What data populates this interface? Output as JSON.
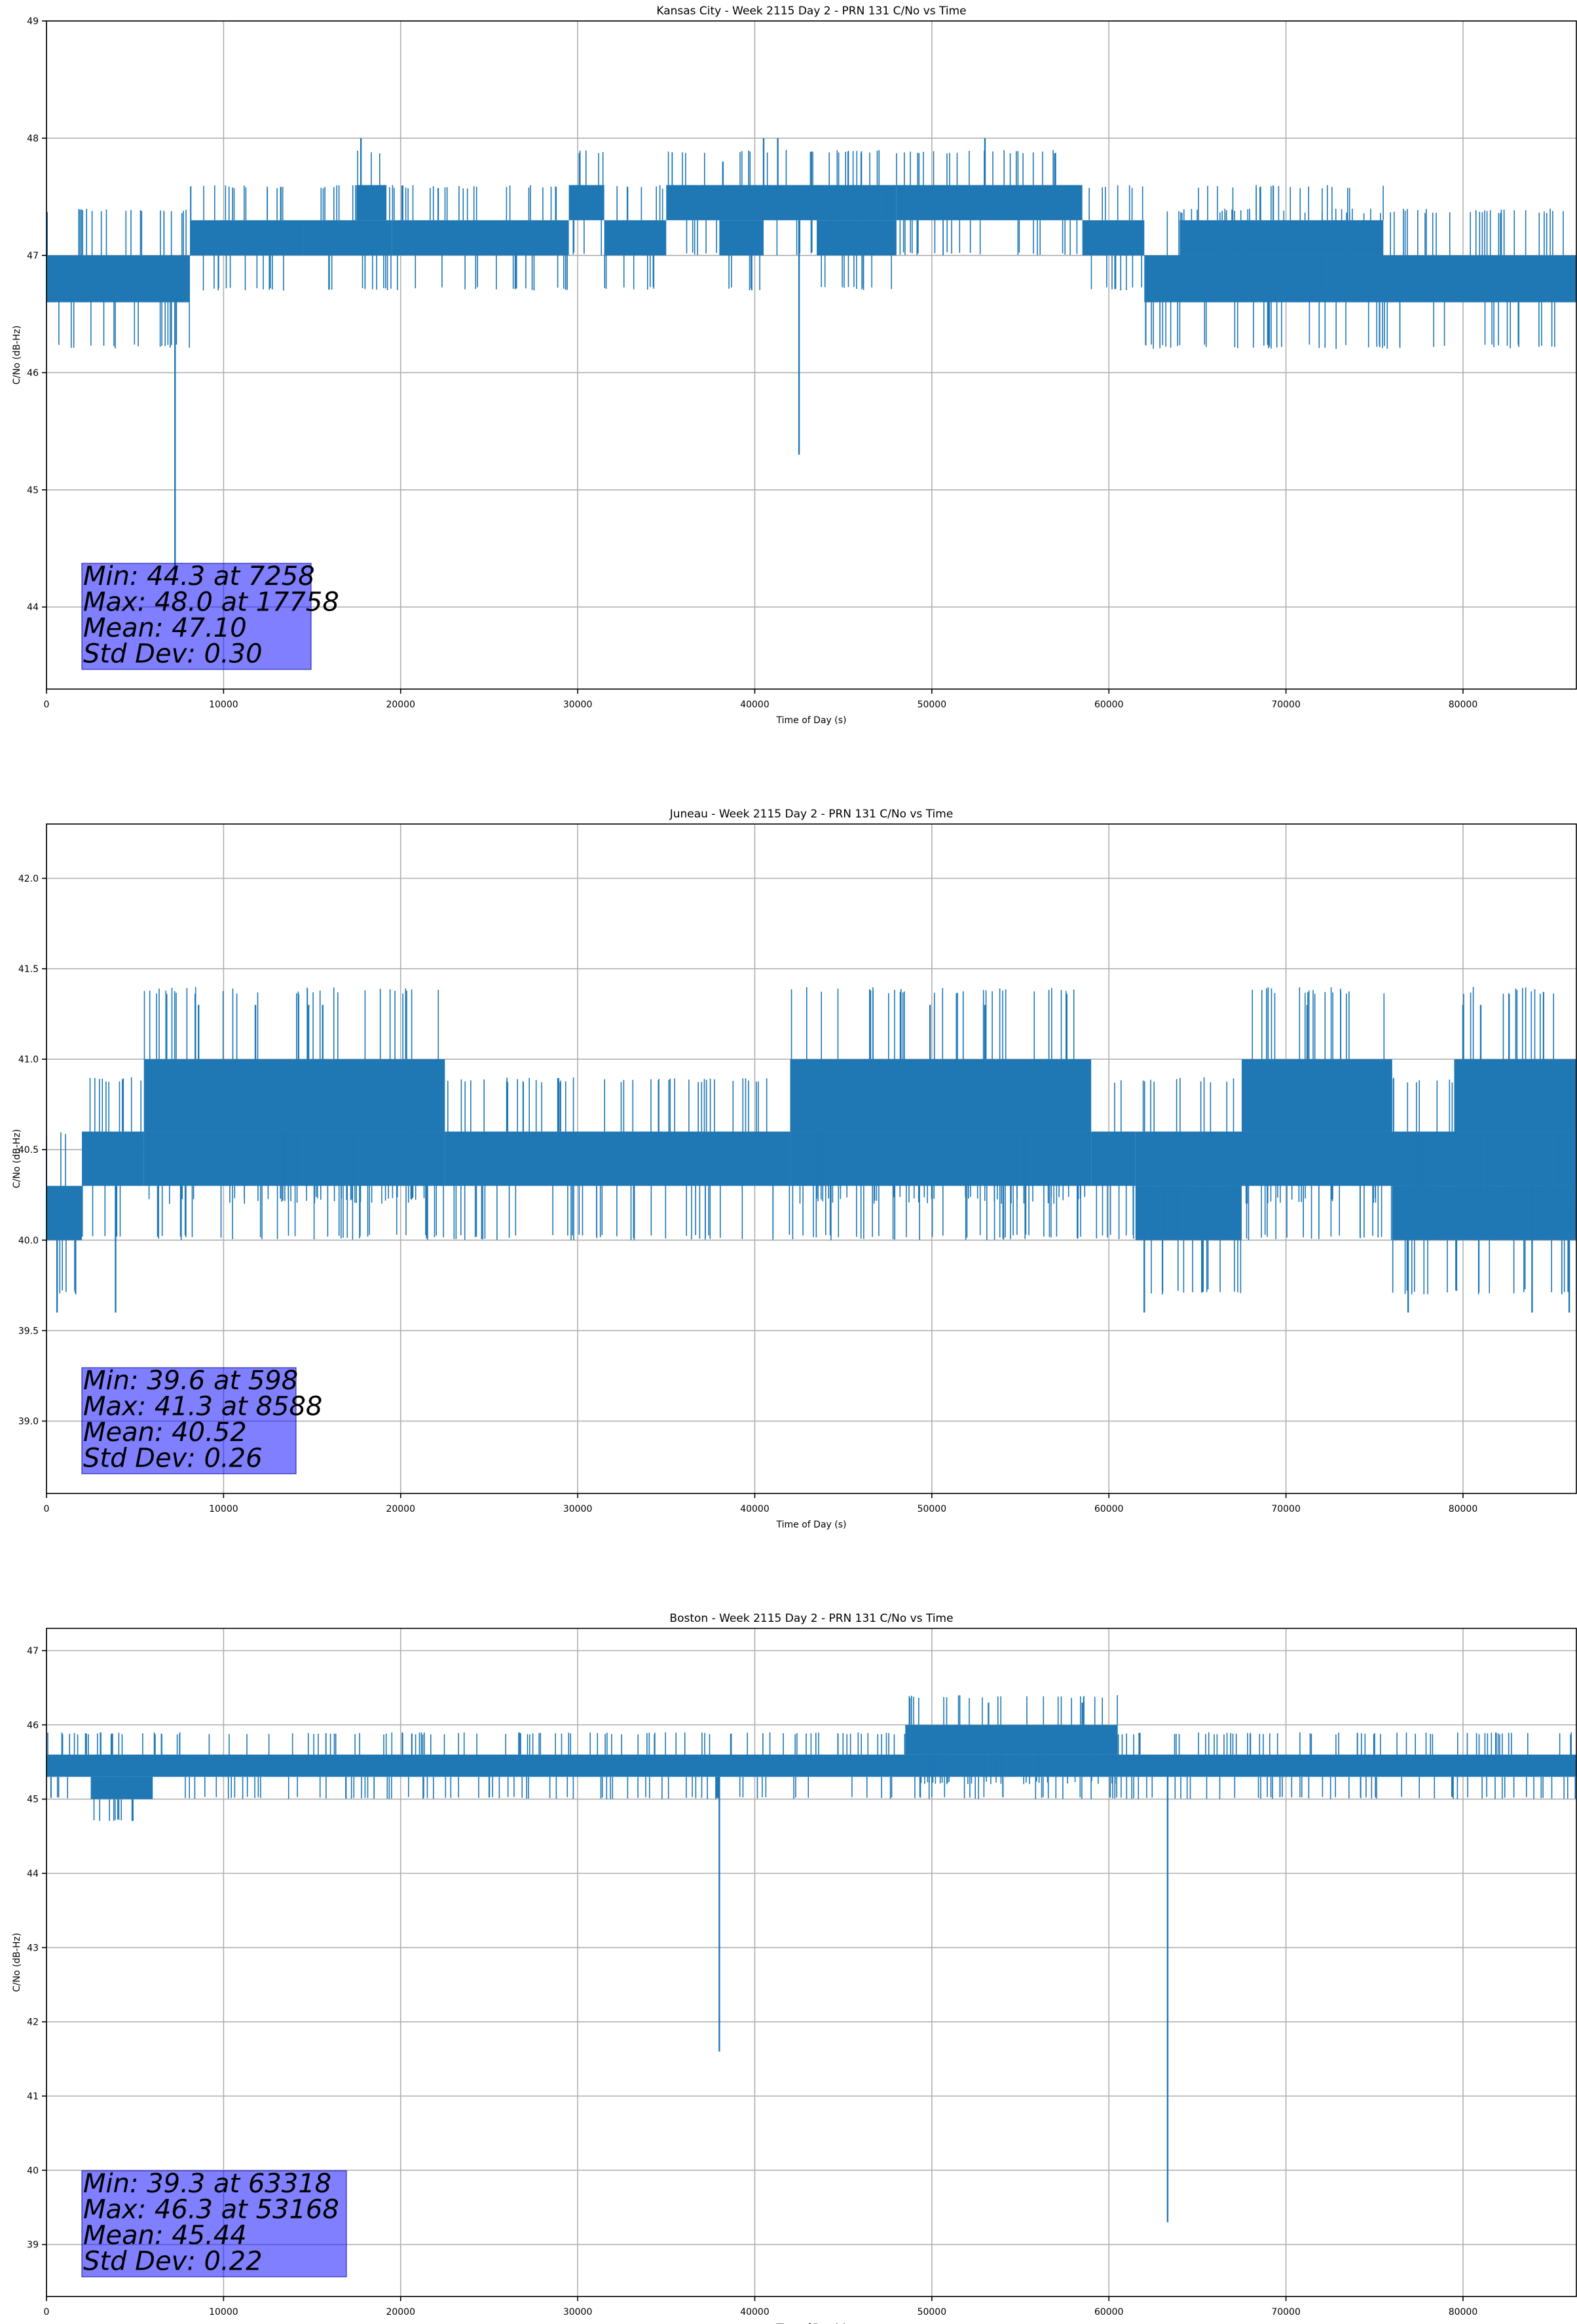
{
  "chart_data": [
    {
      "type": "line",
      "title": "Kansas City - Week 2115 Day 2 - PRN 131 C/No vs Time",
      "xlabel": "Time of Day (s)",
      "ylabel": "C/No (dB-Hz)",
      "xlim": [
        0,
        86400
      ],
      "ylim": [
        43.3,
        49.0
      ],
      "xticks": [
        0,
        10000,
        20000,
        30000,
        40000,
        50000,
        60000,
        70000,
        80000
      ],
      "yticks": [
        44,
        45,
        46,
        47,
        48,
        49
      ],
      "ytick_labels": [
        "44",
        "45",
        "46",
        "47",
        "48",
        "49"
      ],
      "grid": true,
      "line_color": "#1f77b4",
      "bands": [
        {
          "x": [
            0,
            8100
          ],
          "y": [
            46.6,
            47.0
          ]
        },
        {
          "x": [
            8100,
            14500
          ],
          "y": [
            47.0,
            47.3
          ]
        },
        {
          "x": [
            14500,
            19500
          ],
          "y": [
            47.0,
            47.3
          ]
        },
        {
          "x": [
            17500,
            19200
          ],
          "y": [
            47.3,
            47.6
          ]
        },
        {
          "x": [
            19500,
            29500
          ],
          "y": [
            47.0,
            47.3
          ]
        },
        {
          "x": [
            29500,
            31500
          ],
          "y": [
            47.3,
            47.6
          ]
        },
        {
          "x": [
            31500,
            35000
          ],
          "y": [
            47.0,
            47.3
          ]
        },
        {
          "x": [
            35000,
            48000
          ],
          "y": [
            47.3,
            47.6
          ]
        },
        {
          "x": [
            38000,
            40500
          ],
          "y": [
            47.0,
            47.3
          ]
        },
        {
          "x": [
            43500,
            48000
          ],
          "y": [
            47.0,
            47.3
          ]
        },
        {
          "x": [
            48000,
            58500
          ],
          "y": [
            47.3,
            47.6
          ]
        },
        {
          "x": [
            58500,
            62000
          ],
          "y": [
            47.0,
            47.3
          ]
        },
        {
          "x": [
            62000,
            86400
          ],
          "y": [
            46.6,
            47.0
          ]
        },
        {
          "x": [
            64000,
            75500
          ],
          "y": [
            47.0,
            47.3
          ]
        }
      ],
      "spikes": [
        {
          "x": 7258,
          "y": 44.3
        },
        {
          "x": 17758,
          "y": 48.0
        },
        {
          "x": 40500,
          "y": 48.0
        },
        {
          "x": 41300,
          "y": 48.0
        },
        {
          "x": 42500,
          "y": 45.3
        },
        {
          "x": 53000,
          "y": 48.0
        },
        {
          "x": 38200,
          "y": 47.8
        }
      ],
      "stats_box": {
        "min": "Min: 44.3 at 7258",
        "max": "Max: 48.0 at 17758",
        "mean": "Mean: 47.10",
        "std": "Std Dev: 0.30"
      }
    },
    {
      "type": "line",
      "title": "Juneau - Week 2115 Day 2 - PRN 131 C/No vs Time",
      "xlabel": "Time of Day (s)",
      "ylabel": "C/No (dB-Hz)",
      "xlim": [
        0,
        86400
      ],
      "ylim": [
        38.6,
        42.3
      ],
      "xticks": [
        0,
        10000,
        20000,
        30000,
        40000,
        50000,
        60000,
        70000,
        80000
      ],
      "yticks": [
        39.0,
        39.5,
        40.0,
        40.5,
        41.0,
        41.5,
        42.0
      ],
      "ytick_labels": [
        "39.0",
        "39.5",
        "40.0",
        "40.5",
        "41.0",
        "41.5",
        "42.0"
      ],
      "grid": true,
      "line_color": "#1f77b4",
      "bands": [
        {
          "x": [
            0,
            2000
          ],
          "y": [
            40.0,
            40.3
          ]
        },
        {
          "x": [
            2000,
            5500
          ],
          "y": [
            40.3,
            40.6
          ]
        },
        {
          "x": [
            5500,
            22500
          ],
          "y": [
            40.3,
            40.6
          ]
        },
        {
          "x": [
            5500,
            22500
          ],
          "y": [
            40.6,
            41.0
          ]
        },
        {
          "x": [
            22500,
            42000
          ],
          "y": [
            40.3,
            40.6
          ]
        },
        {
          "x": [
            42000,
            59000
          ],
          "y": [
            40.3,
            40.6
          ]
        },
        {
          "x": [
            42000,
            59000
          ],
          "y": [
            40.6,
            41.0
          ]
        },
        {
          "x": [
            59000,
            61500
          ],
          "y": [
            40.3,
            40.6
          ]
        },
        {
          "x": [
            61500,
            67500
          ],
          "y": [
            40.0,
            40.3
          ]
        },
        {
          "x": [
            61500,
            86400
          ],
          "y": [
            40.3,
            40.6
          ]
        },
        {
          "x": [
            67500,
            76000
          ],
          "y": [
            40.6,
            41.0
          ]
        },
        {
          "x": [
            76000,
            86400
          ],
          "y": [
            40.0,
            40.3
          ]
        },
        {
          "x": [
            79500,
            86400
          ],
          "y": [
            40.6,
            41.0
          ]
        }
      ],
      "spikes": [
        {
          "x": 598,
          "y": 39.6
        },
        {
          "x": 3900,
          "y": 39.6
        },
        {
          "x": 8588,
          "y": 41.3
        },
        {
          "x": 11800,
          "y": 41.3
        },
        {
          "x": 14800,
          "y": 41.3
        },
        {
          "x": 15600,
          "y": 41.3
        },
        {
          "x": 49900,
          "y": 41.3
        },
        {
          "x": 53000,
          "y": 41.3
        },
        {
          "x": 62000,
          "y": 39.6
        },
        {
          "x": 71200,
          "y": 41.3
        },
        {
          "x": 76900,
          "y": 39.6
        },
        {
          "x": 80000,
          "y": 41.3
        },
        {
          "x": 81000,
          "y": 41.3
        },
        {
          "x": 83900,
          "y": 39.6
        },
        {
          "x": 86000,
          "y": 39.6
        }
      ],
      "stats_box": {
        "min": "Min: 39.6 at 598",
        "max": "Max: 41.3 at 8588",
        "mean": "Mean: 40.52",
        "std": "Std Dev: 0.26"
      }
    },
    {
      "type": "line",
      "title": "Boston - Week 2115 Day 2 - PRN 131 C/No vs Time",
      "xlabel": "Time of Day (s)",
      "ylabel": "C/No (dB-Hz)",
      "xlim": [
        0,
        86400
      ],
      "ylim": [
        38.3,
        47.3
      ],
      "xticks": [
        0,
        10000,
        20000,
        30000,
        40000,
        50000,
        60000,
        70000,
        80000
      ],
      "yticks": [
        39,
        40,
        41,
        42,
        43,
        44,
        45,
        46,
        47
      ],
      "ytick_labels": [
        "39",
        "40",
        "41",
        "42",
        "43",
        "44",
        "45",
        "46",
        "47"
      ],
      "grid": true,
      "line_color": "#1f77b4",
      "bands": [
        {
          "x": [
            0,
            86400
          ],
          "y": [
            45.3,
            45.6
          ]
        },
        {
          "x": [
            2500,
            6000
          ],
          "y": [
            45.0,
            45.3
          ]
        },
        {
          "x": [
            48500,
            60500
          ],
          "y": [
            45.6,
            46.0
          ]
        }
      ],
      "spikes": [
        {
          "x": 38000,
          "y": 41.6
        },
        {
          "x": 53200,
          "y": 46.3
        },
        {
          "x": 58500,
          "y": 46.3
        },
        {
          "x": 63318,
          "y": 39.3
        }
      ],
      "stats_box": {
        "min": "Min: 39.3 at 63318",
        "max": "Max: 46.3 at 53168",
        "mean": "Mean: 45.44",
        "std": "Std Dev: 0.22"
      }
    }
  ]
}
